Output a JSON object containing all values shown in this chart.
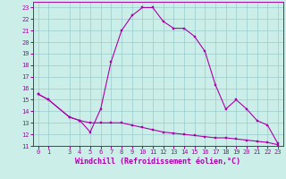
{
  "xlabel": "Windchill (Refroidissement éolien,°C)",
  "bg_color": "#cceee8",
  "line_color": "#aa00aa",
  "grid_color": "#99cccc",
  "xlim": [
    -0.5,
    23.5
  ],
  "ylim": [
    11,
    23.5
  ],
  "yticks": [
    11,
    12,
    13,
    14,
    15,
    16,
    17,
    18,
    19,
    20,
    21,
    22,
    23
  ],
  "xticks": [
    0,
    1,
    3,
    4,
    5,
    6,
    7,
    8,
    9,
    10,
    11,
    12,
    13,
    14,
    15,
    16,
    17,
    18,
    19,
    20,
    21,
    22,
    23
  ],
  "windchill_x": [
    0,
    1,
    3,
    4,
    5,
    6,
    7,
    8,
    9,
    10,
    11,
    12,
    13,
    14,
    15,
    16,
    17,
    18,
    19,
    20,
    21,
    22,
    23
  ],
  "windchill_y": [
    15.5,
    15.0,
    13.5,
    13.2,
    12.2,
    14.2,
    18.3,
    21.0,
    22.3,
    23.0,
    23.0,
    21.8,
    21.2,
    21.2,
    20.5,
    19.2,
    16.3,
    14.2,
    15.0,
    14.2,
    13.2,
    12.8,
    11.2
  ],
  "dew_x": [
    0,
    1,
    3,
    4,
    5,
    6,
    7,
    8,
    9,
    10,
    11,
    12,
    13,
    14,
    15,
    16,
    17,
    18,
    19,
    20,
    21,
    22,
    23
  ],
  "dew_y": [
    15.5,
    15.0,
    13.5,
    13.2,
    13.0,
    13.0,
    13.0,
    13.0,
    12.8,
    12.6,
    12.4,
    12.2,
    12.1,
    12.0,
    11.9,
    11.8,
    11.7,
    11.7,
    11.6,
    11.5,
    11.4,
    11.3,
    11.1
  ],
  "marker_size": 2.0,
  "line_width": 0.8,
  "xlabel_fontsize": 6.0,
  "tick_fontsize": 5.0
}
